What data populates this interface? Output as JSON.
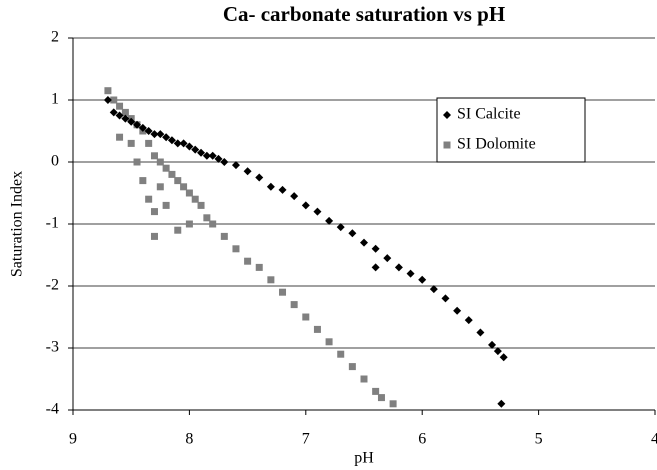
{
  "chart_data": {
    "type": "scatter",
    "title": "Ca- carbonate saturation vs pH",
    "xlabel": "pH",
    "ylabel": "Saturation Index",
    "xlim": [
      9,
      4
    ],
    "xticks": [
      9,
      8,
      7,
      6,
      5,
      4
    ],
    "ylim": [
      -4,
      2
    ],
    "yticks": [
      -4,
      -3,
      -2,
      -1,
      0,
      1,
      2
    ],
    "grid": true,
    "legend": "upper right",
    "series": [
      {
        "name": "SI Calcite",
        "color": "#000000",
        "marker": "diamond",
        "x": [
          8.7,
          8.65,
          8.6,
          8.55,
          8.5,
          8.45,
          8.4,
          8.35,
          8.3,
          8.25,
          8.2,
          8.15,
          8.1,
          8.05,
          8.0,
          7.95,
          7.9,
          7.85,
          7.8,
          7.75,
          7.7,
          7.6,
          7.5,
          7.4,
          7.3,
          7.2,
          7.1,
          7.0,
          6.9,
          6.8,
          6.7,
          6.6,
          6.5,
          6.4,
          6.3,
          6.2,
          6.1,
          6.0,
          5.9,
          5.8,
          5.7,
          5.6,
          5.5,
          5.4,
          5.35,
          5.3,
          6.4,
          5.32
        ],
        "y": [
          1.0,
          0.8,
          0.75,
          0.7,
          0.65,
          0.6,
          0.55,
          0.5,
          0.45,
          0.45,
          0.4,
          0.35,
          0.3,
          0.3,
          0.25,
          0.2,
          0.15,
          0.1,
          0.1,
          0.05,
          0.0,
          -0.05,
          -0.15,
          -0.25,
          -0.4,
          -0.45,
          -0.55,
          -0.7,
          -0.8,
          -0.95,
          -1.05,
          -1.15,
          -1.3,
          -1.4,
          -1.55,
          -1.7,
          -1.8,
          -1.9,
          -2.05,
          -2.2,
          -2.4,
          -2.55,
          -2.75,
          -2.95,
          -3.05,
          -3.15,
          -1.7,
          -3.9
        ]
      },
      {
        "name": "SI Dolomite",
        "color": "#808080",
        "marker": "square",
        "x": [
          8.7,
          8.65,
          8.6,
          8.55,
          8.5,
          8.5,
          8.45,
          8.45,
          8.4,
          8.4,
          8.35,
          8.35,
          8.3,
          8.3,
          8.25,
          8.25,
          8.2,
          8.2,
          8.15,
          8.1,
          8.1,
          8.05,
          8.0,
          8.0,
          7.95,
          7.9,
          7.85,
          7.8,
          7.7,
          7.6,
          7.5,
          7.4,
          7.3,
          7.2,
          7.1,
          7.0,
          6.9,
          6.8,
          6.7,
          6.6,
          6.5,
          6.4,
          6.35,
          6.25,
          8.6,
          8.3
        ],
        "y": [
          1.15,
          1.0,
          0.9,
          0.8,
          0.7,
          0.3,
          0.6,
          0.0,
          0.5,
          -0.3,
          0.3,
          -0.6,
          0.1,
          -0.8,
          0.0,
          -0.4,
          -0.1,
          -0.7,
          -0.2,
          -0.3,
          -1.1,
          -0.4,
          -0.5,
          -1.0,
          -0.6,
          -0.7,
          -0.9,
          -1.0,
          -1.2,
          -1.4,
          -1.6,
          -1.7,
          -1.9,
          -2.1,
          -2.3,
          -2.5,
          -2.7,
          -2.9,
          -3.1,
          -3.3,
          -3.5,
          -3.7,
          -3.8,
          -3.9,
          0.4,
          -1.2
        ]
      }
    ]
  }
}
